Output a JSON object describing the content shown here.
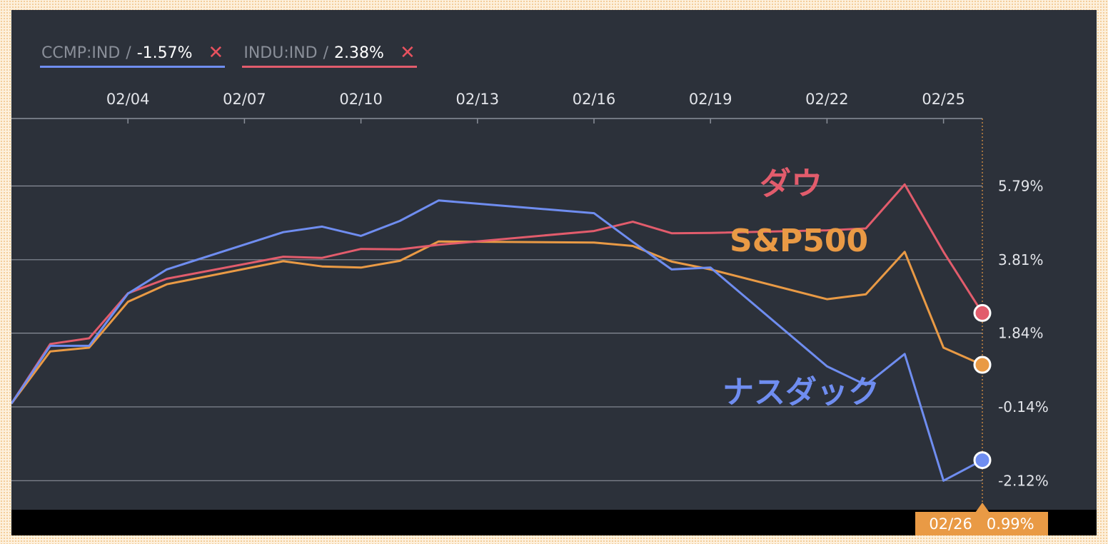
{
  "legend": [
    {
      "symbol": "CCMP:IND",
      "sep": "/",
      "value": "-1.57%",
      "remove": "✕",
      "color": "#6f8df0"
    },
    {
      "symbol": "INDU:IND",
      "sep": "/",
      "value": "2.38%",
      "remove": "✕",
      "color": "#e25c6c"
    }
  ],
  "cursor": {
    "date": "02/26",
    "value": "0.99%"
  },
  "chart_data": {
    "type": "line",
    "x_ticks": [
      "02/04",
      "02/07",
      "02/10",
      "02/13",
      "02/16",
      "02/19",
      "02/22",
      "02/25"
    ],
    "y_ticks": [
      "5.79%",
      "3.81%",
      "1.84%",
      "-0.14%",
      "-2.12%"
    ],
    "ylim": [
      -2.9,
      7.6
    ],
    "grid": true,
    "x": [
      "02/01",
      "02/02",
      "02/03",
      "02/04",
      "02/05",
      "02/08",
      "02/09",
      "02/10",
      "02/11",
      "02/12",
      "02/16",
      "02/17",
      "02/18",
      "02/19",
      "02/22",
      "02/23",
      "02/24",
      "02/25",
      "02/26"
    ],
    "series": [
      {
        "name": "ナスダック",
        "color": "#6f8df0",
        "values": [
          -0.05,
          1.5,
          1.5,
          2.9,
          3.55,
          4.55,
          4.7,
          4.45,
          4.85,
          5.4,
          5.06,
          4.29,
          3.55,
          3.6,
          0.95,
          0.45,
          1.28,
          -2.12,
          -1.57
        ]
      },
      {
        "name": "ダウ",
        "color": "#e25c6c",
        "values": [
          -0.05,
          1.55,
          1.7,
          2.91,
          3.3,
          3.89,
          3.86,
          4.1,
          4.09,
          4.21,
          4.58,
          4.83,
          4.52,
          4.53,
          4.6,
          4.65,
          5.83,
          4.02,
          2.38
        ]
      },
      {
        "name": "S&P500",
        "color": "#e99a45",
        "values": [
          -0.05,
          1.35,
          1.45,
          2.68,
          3.15,
          3.77,
          3.63,
          3.6,
          3.78,
          4.3,
          4.27,
          4.18,
          3.76,
          3.55,
          2.75,
          2.88,
          4.02,
          1.45,
          0.99
        ]
      }
    ]
  },
  "annotations": {
    "dow": "ダウ",
    "sp500": "S&P500",
    "nasdaq": "ナスダック"
  }
}
